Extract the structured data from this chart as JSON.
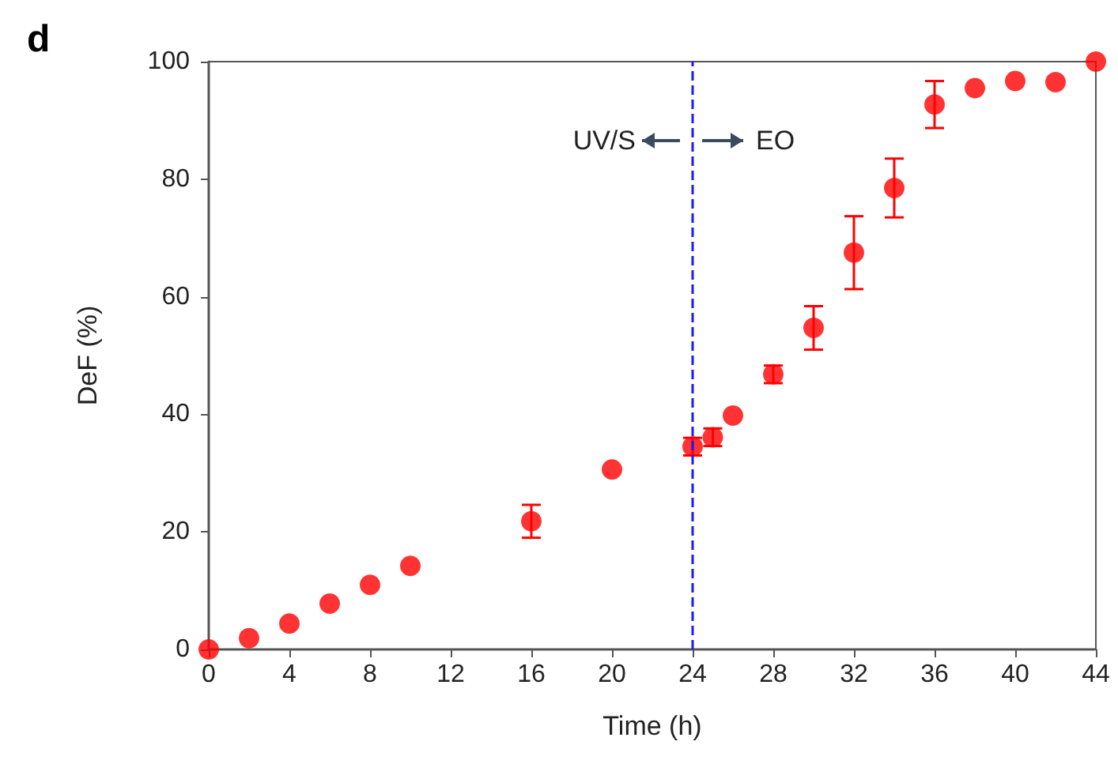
{
  "chart_data": {
    "type": "scatter",
    "title": "d",
    "xlabel": "Time (h)",
    "ylabel": "DeF (%)",
    "x": [
      0,
      2,
      4,
      6,
      8,
      10,
      16,
      20,
      24,
      25,
      26,
      28,
      30,
      32,
      34,
      36,
      38,
      40,
      42,
      44
    ],
    "series": [
      {
        "color": "#ff0000",
        "values": [
          0,
          1.9,
          4.4,
          7.8,
          11,
          14.2,
          21.8,
          30.6,
          34.5,
          36.1,
          39.8,
          46.8,
          54.7,
          67.5,
          78.5,
          92.7,
          95.5,
          96.7,
          96.5,
          100
        ],
        "errors": [
          null,
          null,
          null,
          null,
          null,
          null,
          2.8,
          null,
          1.5,
          1.5,
          null,
          1.5,
          3.7,
          6.2,
          5,
          4,
          null,
          null,
          null,
          null
        ]
      }
    ],
    "xlim": [
      0,
      44
    ],
    "xticks": [
      0,
      4,
      8,
      12,
      16,
      20,
      24,
      28,
      32,
      36,
      40,
      44
    ],
    "ylim": [
      0,
      100
    ],
    "yticks": [
      0,
      20,
      40,
      60,
      80,
      100
    ],
    "marker": "circle",
    "ref_lines": [
      {
        "axis": "x",
        "value": 24,
        "color": "#1a1aff",
        "line_style": "dashed"
      }
    ],
    "annotations": [
      "UV/S",
      "EO"
    ]
  }
}
